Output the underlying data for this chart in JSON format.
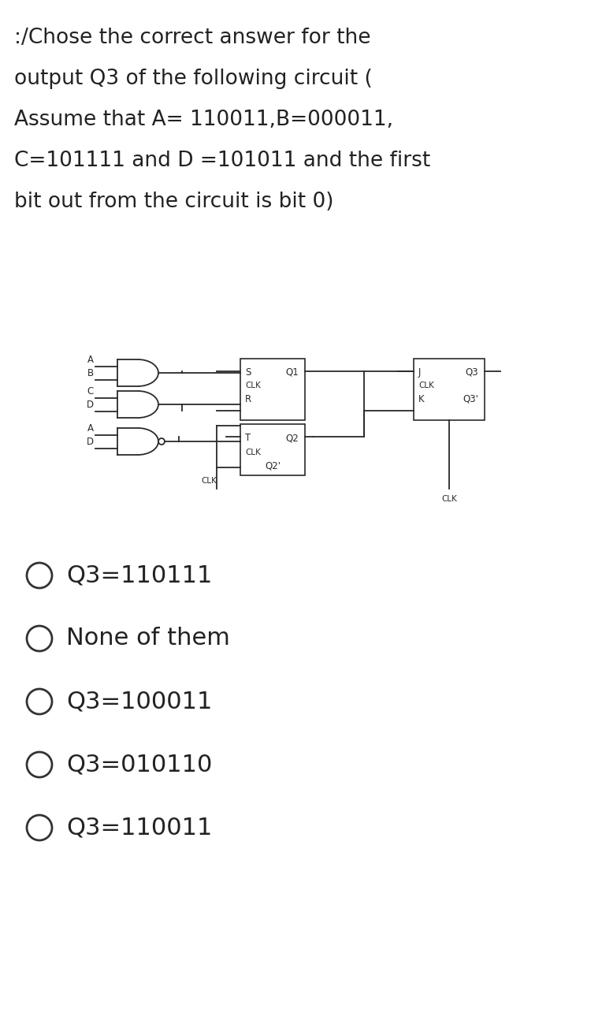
{
  "title_lines": [
    ":/Chose the correct answer for the",
    "output Q3 of the following circuit (",
    "Assume that A= 110011,B=000011,",
    "C=101111 and D =101011 and the first",
    "bit out from the circuit is bit 0)"
  ],
  "options": [
    "Q3=110111",
    "None of them",
    "Q3=100011",
    "Q3=010110",
    "Q3=110011"
  ],
  "bg_color": "#ffffff",
  "text_color": "#222222",
  "title_fontsize": 19,
  "option_fontsize": 22
}
